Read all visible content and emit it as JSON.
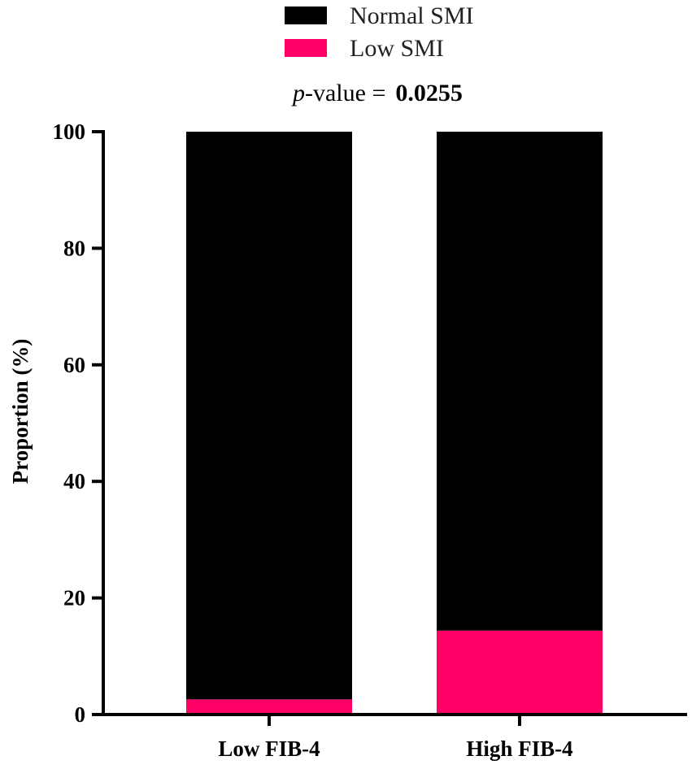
{
  "colors": {
    "normal": "#000000",
    "low": "#ff0066",
    "axis": "#000000"
  },
  "legend": {
    "items": [
      {
        "label": "Normal SMI",
        "color": "#000000"
      },
      {
        "label": "Low SMI",
        "color": "#ff0066"
      }
    ]
  },
  "annotation": {
    "italic": "p",
    "rest": "-value =",
    "value": "0.0255"
  },
  "chart_data": {
    "type": "bar",
    "stacked": true,
    "categories": [
      "Low FIB-4",
      "High FIB-4"
    ],
    "series": [
      {
        "name": "Low SMI",
        "values": [
          2.6,
          14.4
        ]
      },
      {
        "name": "Normal SMI",
        "values": [
          97.4,
          85.6
        ]
      }
    ],
    "xlabel": "",
    "ylabel": "Proportion (%)",
    "ylim": [
      0,
      100
    ],
    "yticks": [
      0,
      20,
      40,
      60,
      80,
      100
    ],
    "grid": false,
    "legend_position": "top-center"
  }
}
